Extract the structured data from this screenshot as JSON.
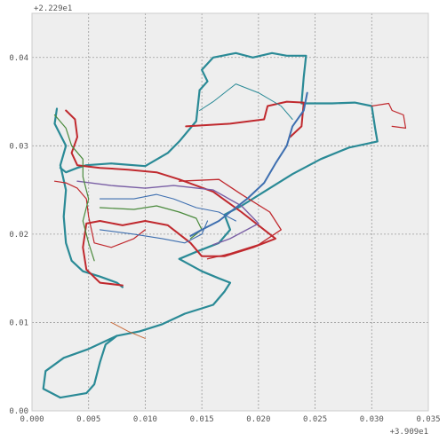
{
  "chart_data": {
    "type": "line",
    "title": "",
    "xlabel": "",
    "ylabel": "",
    "x_offset_label": "+3.909e1",
    "y_offset_label": "+2.229e1",
    "xlim": [
      0.0,
      0.035
    ],
    "ylim": [
      0.0,
      0.045
    ],
    "x_ticks": [
      "0.000",
      "0.005",
      "0.010",
      "0.015",
      "0.020",
      "0.025",
      "0.030",
      "0.035"
    ],
    "y_ticks": [
      "0.00",
      "0.01",
      "0.02",
      "0.03",
      "0.04"
    ],
    "x_tick_values": [
      0.0,
      0.005,
      0.01,
      0.015,
      0.02,
      0.025,
      0.03,
      0.035
    ],
    "y_tick_values": [
      0.0,
      0.01,
      0.02,
      0.03,
      0.04
    ],
    "grid": true,
    "background": "#eeeeee",
    "colors": {
      "red": "#c0292e",
      "teal": "#2a8a96",
      "blue": "#3e6fb0",
      "purple": "#7a5fa5",
      "green": "#4a8a3c",
      "orange": "#c86a3a"
    },
    "series": [
      {
        "color": "teal",
        "width": 2.2,
        "points": [
          [
            0.0148,
            0.0363
          ],
          [
            0.0155,
            0.0373
          ],
          [
            0.015,
            0.0386
          ],
          [
            0.016,
            0.04
          ],
          [
            0.018,
            0.0405
          ],
          [
            0.0195,
            0.04
          ],
          [
            0.0212,
            0.0405
          ],
          [
            0.0225,
            0.0402
          ],
          [
            0.0242,
            0.0402
          ],
          [
            0.024,
            0.0378
          ],
          [
            0.0238,
            0.0348
          ],
          [
            0.0265,
            0.0348
          ],
          [
            0.0285,
            0.0349
          ],
          [
            0.03,
            0.0345
          ],
          [
            0.0303,
            0.032
          ],
          [
            0.0305,
            0.0305
          ],
          [
            0.028,
            0.0298
          ],
          [
            0.0255,
            0.0285
          ],
          [
            0.023,
            0.0268
          ],
          [
            0.0205,
            0.0248
          ],
          [
            0.0185,
            0.0232
          ],
          [
            0.017,
            0.0222
          ],
          [
            0.0175,
            0.0205
          ],
          [
            0.0165,
            0.019
          ],
          [
            0.0145,
            0.018
          ],
          [
            0.013,
            0.0172
          ],
          [
            0.015,
            0.0158
          ],
          [
            0.0165,
            0.015
          ],
          [
            0.0175,
            0.0145
          ],
          [
            0.017,
            0.0135
          ],
          [
            0.016,
            0.012
          ],
          [
            0.0135,
            0.011
          ],
          [
            0.0115,
            0.0098
          ],
          [
            0.0095,
            0.009
          ],
          [
            0.0075,
            0.0085
          ],
          [
            0.0065,
            0.0075
          ],
          [
            0.006,
            0.0055
          ],
          [
            0.0055,
            0.003
          ],
          [
            0.0048,
            0.002
          ],
          [
            0.0025,
            0.0015
          ],
          [
            0.001,
            0.0025
          ],
          [
            0.0012,
            0.0045
          ],
          [
            0.0028,
            0.006
          ],
          [
            0.005,
            0.007
          ],
          [
            0.0075,
            0.0085
          ]
        ]
      },
      {
        "color": "teal",
        "width": 2.2,
        "points": [
          [
            0.0148,
            0.0363
          ],
          [
            0.0145,
            0.0328
          ],
          [
            0.013,
            0.0305
          ],
          [
            0.012,
            0.0292
          ],
          [
            0.01,
            0.0277
          ],
          [
            0.007,
            0.028
          ],
          [
            0.0048,
            0.0278
          ],
          [
            0.004,
            0.0275
          ],
          [
            0.003,
            0.027
          ],
          [
            0.0025,
            0.0275
          ]
        ]
      },
      {
        "color": "teal",
        "width": 2.2,
        "points": [
          [
            0.0022,
            0.0342
          ],
          [
            0.002,
            0.0325
          ],
          [
            0.003,
            0.03
          ],
          [
            0.0025,
            0.0278
          ],
          [
            0.003,
            0.025
          ],
          [
            0.0028,
            0.022
          ],
          [
            0.003,
            0.019
          ],
          [
            0.0035,
            0.017
          ],
          [
            0.0045,
            0.0158
          ],
          [
            0.006,
            0.0152
          ],
          [
            0.0075,
            0.0145
          ],
          [
            0.008,
            0.014
          ]
        ]
      },
      {
        "color": "red",
        "width": 2.0,
        "points": [
          [
            0.003,
            0.034
          ],
          [
            0.0038,
            0.033
          ],
          [
            0.004,
            0.031
          ],
          [
            0.0035,
            0.0292
          ],
          [
            0.004,
            0.0278
          ],
          [
            0.006,
            0.0275
          ],
          [
            0.0085,
            0.0273
          ],
          [
            0.011,
            0.027
          ],
          [
            0.013,
            0.0262
          ],
          [
            0.016,
            0.0248
          ],
          [
            0.0185,
            0.0225
          ],
          [
            0.0205,
            0.0205
          ],
          [
            0.0215,
            0.0195
          ],
          [
            0.0195,
            0.0185
          ],
          [
            0.017,
            0.0175
          ],
          [
            0.015,
            0.0175
          ],
          [
            0.014,
            0.019
          ],
          [
            0.012,
            0.021
          ],
          [
            0.01,
            0.0215
          ],
          [
            0.008,
            0.021
          ],
          [
            0.006,
            0.0215
          ],
          [
            0.0048,
            0.0212
          ],
          [
            0.0045,
            0.0185
          ],
          [
            0.0048,
            0.016
          ],
          [
            0.006,
            0.0145
          ],
          [
            0.008,
            0.0142
          ]
        ]
      },
      {
        "color": "red",
        "width": 2.0,
        "points": [
          [
            0.0136,
            0.0322
          ],
          [
            0.0175,
            0.0325
          ],
          [
            0.0205,
            0.033
          ],
          [
            0.0208,
            0.0345
          ],
          [
            0.0225,
            0.035
          ],
          [
            0.024,
            0.0349
          ],
          [
            0.0238,
            0.0322
          ],
          [
            0.0228,
            0.031
          ]
        ]
      },
      {
        "color": "red",
        "width": 1.3,
        "points": [
          [
            0.013,
            0.026
          ],
          [
            0.0165,
            0.0262
          ],
          [
            0.0185,
            0.0245
          ],
          [
            0.021,
            0.0225
          ],
          [
            0.022,
            0.0205
          ],
          [
            0.02,
            0.0188
          ],
          [
            0.0175,
            0.0178
          ],
          [
            0.0155,
            0.0172
          ]
        ]
      },
      {
        "color": "red",
        "width": 1.2,
        "points": [
          [
            0.002,
            0.026
          ],
          [
            0.003,
            0.0258
          ],
          [
            0.004,
            0.0252
          ],
          [
            0.0048,
            0.024
          ],
          [
            0.005,
            0.022
          ],
          [
            0.0055,
            0.019
          ],
          [
            0.007,
            0.0185
          ],
          [
            0.009,
            0.0195
          ],
          [
            0.01,
            0.0205
          ]
        ]
      },
      {
        "color": "red",
        "width": 1.2,
        "points": [
          [
            0.03,
            0.0345
          ],
          [
            0.0315,
            0.0348
          ],
          [
            0.0318,
            0.034
          ],
          [
            0.0328,
            0.0335
          ],
          [
            0.033,
            0.032
          ],
          [
            0.0318,
            0.0322
          ]
        ]
      },
      {
        "color": "blue",
        "width": 1.1,
        "points": [
          [
            0.006,
            0.024
          ],
          [
            0.009,
            0.024
          ],
          [
            0.011,
            0.0245
          ],
          [
            0.0125,
            0.024
          ],
          [
            0.0145,
            0.023
          ],
          [
            0.0165,
            0.0225
          ],
          [
            0.018,
            0.0215
          ]
        ]
      },
      {
        "color": "blue",
        "width": 1.1,
        "points": [
          [
            0.006,
            0.0205
          ],
          [
            0.009,
            0.02
          ],
          [
            0.0115,
            0.0195
          ],
          [
            0.0135,
            0.019
          ],
          [
            0.015,
            0.02
          ],
          [
            0.0155,
            0.0215
          ]
        ]
      },
      {
        "color": "purple",
        "width": 1.4,
        "points": [
          [
            0.004,
            0.026
          ],
          [
            0.007,
            0.0255
          ],
          [
            0.01,
            0.0252
          ],
          [
            0.0125,
            0.0255
          ],
          [
            0.016,
            0.025
          ],
          [
            0.0185,
            0.0232
          ],
          [
            0.02,
            0.0212
          ],
          [
            0.0175,
            0.0195
          ],
          [
            0.016,
            0.0188
          ]
        ]
      },
      {
        "color": "green",
        "width": 1.2,
        "points": [
          [
            0.006,
            0.023
          ],
          [
            0.009,
            0.0228
          ],
          [
            0.011,
            0.0232
          ],
          [
            0.013,
            0.0225
          ],
          [
            0.0145,
            0.0218
          ],
          [
            0.015,
            0.0205
          ],
          [
            0.014,
            0.0195
          ]
        ]
      },
      {
        "color": "green",
        "width": 1.2,
        "points": [
          [
            0.002,
            0.0335
          ],
          [
            0.003,
            0.032
          ],
          [
            0.0035,
            0.03
          ],
          [
            0.0045,
            0.0285
          ],
          [
            0.0045,
            0.0265
          ],
          [
            0.005,
            0.024
          ],
          [
            0.0045,
            0.0215
          ],
          [
            0.005,
            0.019
          ],
          [
            0.0055,
            0.017
          ]
        ]
      },
      {
        "color": "teal",
        "width": 1.0,
        "points": [
          [
            0.0148,
            0.034
          ],
          [
            0.016,
            0.035
          ],
          [
            0.018,
            0.037
          ],
          [
            0.02,
            0.036
          ],
          [
            0.022,
            0.0345
          ],
          [
            0.023,
            0.033
          ]
        ]
      },
      {
        "color": "orange",
        "width": 1.0,
        "points": [
          [
            0.007,
            0.01
          ],
          [
            0.0085,
            0.009
          ],
          [
            0.01,
            0.0082
          ]
        ]
      },
      {
        "color": "blue",
        "width": 2.0,
        "points": [
          [
            0.0243,
            0.036
          ],
          [
            0.024,
            0.034
          ],
          [
            0.023,
            0.0322
          ],
          [
            0.0225,
            0.03
          ],
          [
            0.0215,
            0.028
          ],
          [
            0.0205,
            0.0258
          ],
          [
            0.019,
            0.024
          ],
          [
            0.0175,
            0.0225
          ],
          [
            0.0165,
            0.0215
          ],
          [
            0.015,
            0.0205
          ],
          [
            0.014,
            0.0198
          ]
        ]
      }
    ]
  }
}
